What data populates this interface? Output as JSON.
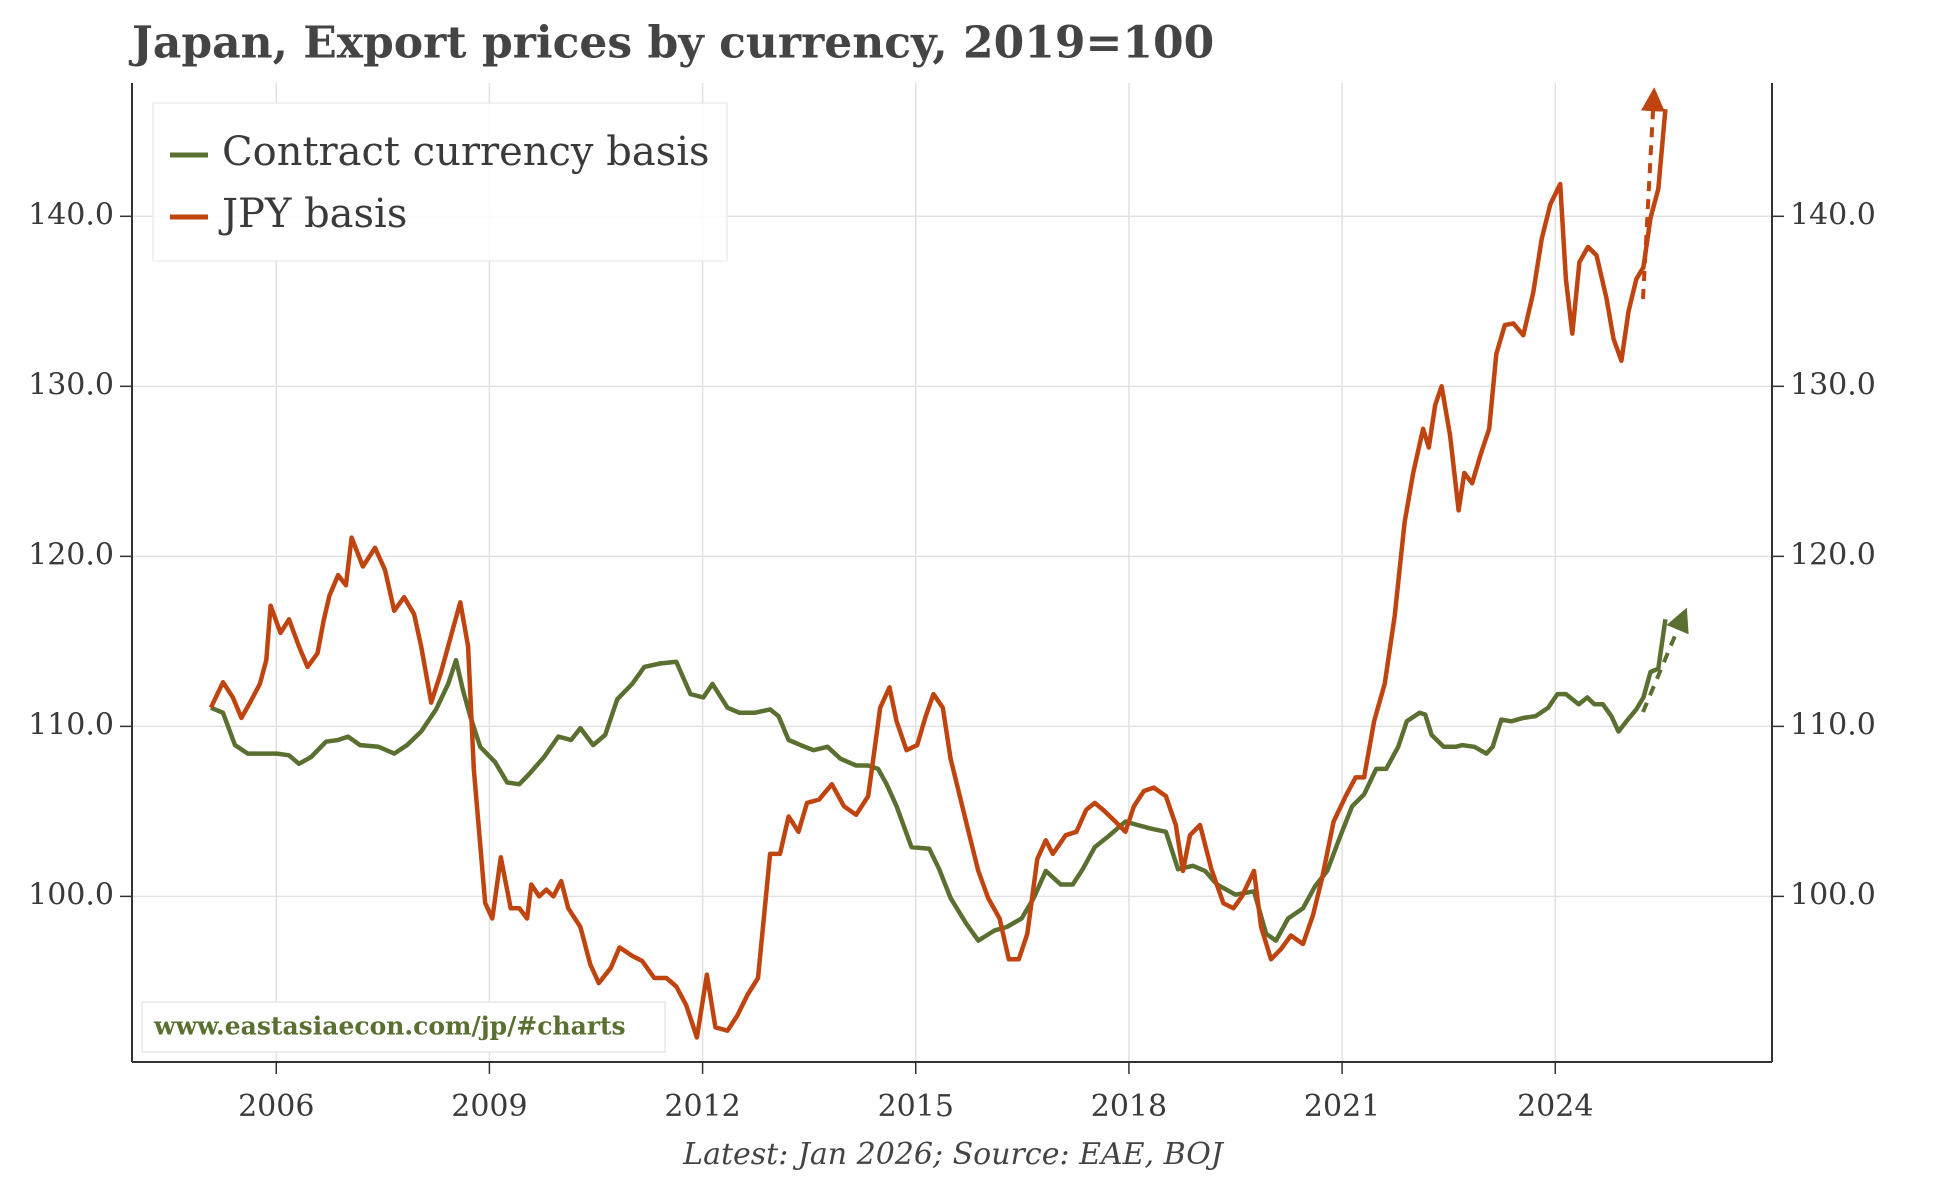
{
  "chart_data": {
    "type": "line",
    "title": "Japan, Export prices by currency, 2019=100",
    "source": "Latest: Jan 2026; Source: EAE, BOJ",
    "watermark": "www.eastasiaecon.com/jp/#charts",
    "xlim": [
      2004.47,
      2027.55
    ],
    "ylim": [
      90.26,
      147.84
    ],
    "xticks": [
      {
        "value": 2006.5,
        "label": "2006"
      },
      {
        "value": 2009.5,
        "label": "2009"
      },
      {
        "value": 2012.5,
        "label": "2012"
      },
      {
        "value": 2015.5,
        "label": "2015"
      },
      {
        "value": 2018.5,
        "label": "2018"
      },
      {
        "value": 2021.5,
        "label": "2021"
      },
      {
        "value": 2024.5,
        "label": "2024"
      }
    ],
    "yticks": [
      {
        "value": 100,
        "label": "100.0"
      },
      {
        "value": 110,
        "label": "110.0"
      },
      {
        "value": 120,
        "label": "120.0"
      },
      {
        "value": 130,
        "label": "130.0"
      },
      {
        "value": 140,
        "label": "140.0"
      }
    ],
    "grid": true,
    "legend": "upper left",
    "series": [
      {
        "name": "Contract currency basis",
        "color": "#5a7031",
        "x": [
          2005.58,
          2005.75,
          2005.92,
          2006.1,
          2006.3,
          2006.51,
          2006.68,
          2006.82,
          2006.99,
          2007.2,
          2007.37,
          2007.51,
          2007.68,
          2007.94,
          2008.16,
          2008.34,
          2008.54,
          2008.75,
          2008.92,
          2009.03,
          2009.13,
          2009.23,
          2009.37,
          2009.58,
          2009.75,
          2009.92,
          2010.06,
          2010.27,
          2010.47,
          2010.65,
          2010.78,
          2010.96,
          2011.13,
          2011.3,
          2011.51,
          2011.68,
          2011.9,
          2012.13,
          2012.33,
          2012.51,
          2012.64,
          2012.85,
          2013.02,
          2013.23,
          2013.45,
          2013.57,
          2013.71,
          2013.88,
          2014.06,
          2014.26,
          2014.44,
          2014.66,
          2014.83,
          2014.97,
          2015.09,
          2015.23,
          2015.44,
          2015.69,
          2015.83,
          2015.99,
          2016.21,
          2016.38,
          2016.61,
          2016.78,
          2016.99,
          2017.16,
          2017.33,
          2017.54,
          2017.71,
          2017.85,
          2018.02,
          2018.23,
          2018.45,
          2018.62,
          2018.8,
          2019.02,
          2019.19,
          2019.4,
          2019.57,
          2019.74,
          2020.0,
          2020.26,
          2020.43,
          2020.57,
          2020.74,
          2020.95,
          2021.12,
          2021.29,
          2021.47,
          2021.64,
          2021.81,
          2021.98,
          2022.12,
          2022.29,
          2022.41,
          2022.59,
          2022.67,
          2022.76,
          2022.93,
          2023.1,
          2023.19,
          2023.36,
          2023.53,
          2023.62,
          2023.74,
          2023.88,
          2024.05,
          2024.22,
          2024.4,
          2024.53,
          2024.65,
          2024.83,
          2024.95,
          2025.05,
          2025.17,
          2025.29,
          2025.39,
          2025.52,
          2025.64,
          2025.74,
          2025.84,
          2025.95,
          2026.05
        ],
        "values": [
          111.1,
          110.8,
          108.9,
          108.4,
          108.4,
          108.4,
          108.3,
          107.8,
          108.2,
          109.1,
          109.2,
          109.4,
          108.9,
          108.8,
          108.4,
          108.9,
          109.7,
          111.0,
          112.5,
          113.9,
          112.1,
          110.6,
          108.8,
          107.9,
          106.7,
          106.6,
          107.2,
          108.2,
          109.4,
          109.2,
          109.9,
          108.9,
          109.5,
          111.6,
          112.5,
          113.5,
          113.7,
          113.8,
          111.9,
          111.7,
          112.5,
          111.1,
          110.8,
          110.8,
          111.0,
          110.6,
          109.2,
          108.9,
          108.6,
          108.8,
          108.1,
          107.7,
          107.7,
          107.5,
          106.6,
          105.3,
          102.9,
          102.8,
          101.6,
          99.9,
          98.4,
          97.4,
          98.0,
          98.2,
          98.7,
          99.9,
          101.5,
          100.7,
          100.7,
          101.6,
          102.9,
          103.6,
          104.4,
          104.2,
          104.0,
          103.8,
          101.6,
          101.8,
          101.5,
          100.7,
          100.1,
          100.3,
          97.8,
          97.4,
          98.7,
          99.3,
          100.6,
          101.5,
          103.5,
          105.3,
          106.0,
          107.5,
          107.5,
          108.8,
          110.3,
          110.8,
          110.7,
          109.5,
          108.8,
          108.8,
          108.9,
          108.8,
          108.4,
          108.8,
          110.4,
          110.3,
          110.5,
          110.6,
          111.1,
          111.9,
          111.9,
          111.3,
          111.7,
          111.3,
          111.3,
          110.6,
          109.7,
          110.4,
          111.0,
          111.7,
          113.2,
          113.4,
          116.3
        ]
      },
      {
        "name": "JPY basis",
        "color": "#c0440f",
        "x": [
          2005.58,
          2005.75,
          2005.89,
          2006.01,
          2006.13,
          2006.27,
          2006.36,
          2006.42,
          2006.56,
          2006.68,
          2006.82,
          2006.94,
          2007.08,
          2007.17,
          2007.25,
          2007.37,
          2007.48,
          2007.56,
          2007.72,
          2007.89,
          2008.03,
          2008.16,
          2008.3,
          2008.44,
          2008.54,
          2008.68,
          2008.82,
          2008.99,
          2009.09,
          2009.2,
          2009.28,
          2009.44,
          2009.54,
          2009.66,
          2009.8,
          2009.92,
          2010.03,
          2010.09,
          2010.2,
          2010.3,
          2010.4,
          2010.51,
          2010.61,
          2010.78,
          2010.92,
          2011.04,
          2011.21,
          2011.33,
          2011.51,
          2011.65,
          2011.82,
          2011.99,
          2012.13,
          2012.27,
          2012.42,
          2012.56,
          2012.68,
          2012.85,
          2012.99,
          2013.13,
          2013.28,
          2013.45,
          2013.59,
          2013.71,
          2013.85,
          2013.97,
          2014.14,
          2014.32,
          2014.49,
          2014.66,
          2014.83,
          2015.0,
          2015.13,
          2015.23,
          2015.37,
          2015.52,
          2015.64,
          2015.75,
          2015.88,
          2015.99,
          2016.12,
          2016.26,
          2016.38,
          2016.52,
          2016.68,
          2016.81,
          2016.95,
          2017.07,
          2017.21,
          2017.33,
          2017.43,
          2017.61,
          2017.76,
          2017.9,
          2018.02,
          2018.16,
          2018.31,
          2018.45,
          2018.57,
          2018.71,
          2018.85,
          2019.02,
          2019.16,
          2019.26,
          2019.36,
          2019.5,
          2019.66,
          2019.83,
          2019.97,
          2020.09,
          2020.26,
          2020.36,
          2020.5,
          2020.64,
          2020.78,
          2020.95,
          2021.09,
          2021.22,
          2021.38,
          2021.55,
          2021.69,
          2021.81,
          2021.95,
          2022.1,
          2022.24,
          2022.38,
          2022.5,
          2022.64,
          2022.72,
          2022.81,
          2022.9,
          2023.02,
          2023.14,
          2023.22,
          2023.33,
          2023.45,
          2023.57,
          2023.67,
          2023.79,
          2023.91,
          2024.05,
          2024.19,
          2024.31,
          2024.43,
          2024.57,
          2024.65,
          2024.74,
          2024.84,
          2024.96,
          2025.08,
          2025.22,
          2025.32,
          2025.43,
          2025.53,
          2025.64,
          2025.74,
          2025.84,
          2025.95,
          2026.05
        ],
        "values": [
          111.1,
          112.6,
          111.7,
          110.5,
          111.4,
          112.5,
          113.9,
          117.1,
          115.5,
          116.3,
          114.7,
          113.5,
          114.3,
          116.3,
          117.7,
          118.9,
          118.3,
          121.1,
          119.4,
          120.5,
          119.2,
          116.8,
          117.6,
          116.6,
          114.7,
          111.4,
          113.2,
          115.8,
          117.3,
          114.7,
          107.5,
          99.6,
          98.7,
          102.3,
          99.3,
          99.3,
          98.7,
          100.7,
          100.0,
          100.4,
          100.0,
          100.9,
          99.3,
          98.2,
          96.0,
          94.9,
          95.8,
          97.0,
          96.5,
          96.2,
          95.2,
          95.2,
          94.7,
          93.6,
          91.7,
          95.4,
          92.3,
          92.1,
          93.0,
          94.2,
          95.2,
          102.5,
          102.5,
          104.7,
          103.8,
          105.5,
          105.7,
          106.6,
          105.3,
          104.8,
          105.9,
          111.1,
          112.3,
          110.3,
          108.6,
          108.9,
          110.6,
          111.9,
          111.1,
          108.1,
          105.9,
          103.5,
          101.5,
          99.9,
          98.7,
          96.3,
          96.3,
          97.8,
          102.2,
          103.3,
          102.5,
          103.6,
          103.8,
          105.1,
          105.5,
          105.0,
          104.4,
          103.8,
          105.3,
          106.2,
          106.4,
          105.9,
          104.2,
          101.5,
          103.6,
          104.2,
          101.6,
          99.6,
          99.3,
          100.0,
          101.5,
          98.2,
          96.3,
          96.9,
          97.7,
          97.2,
          98.9,
          101.1,
          104.4,
          105.9,
          107.0,
          107.0,
          110.3,
          112.5,
          116.5,
          122.0,
          124.9,
          127.5,
          126.4,
          128.9,
          130.0,
          127.1,
          122.7,
          124.9,
          124.3,
          126.0,
          127.5,
          131.9,
          133.6,
          133.7,
          133.0,
          135.5,
          138.7,
          140.7,
          141.9,
          136.3,
          133.1,
          137.3,
          138.2,
          137.7,
          135.2,
          132.8,
          131.5,
          134.4,
          136.3,
          137.0,
          139.9,
          141.6,
          146.3
        ]
      }
    ]
  }
}
